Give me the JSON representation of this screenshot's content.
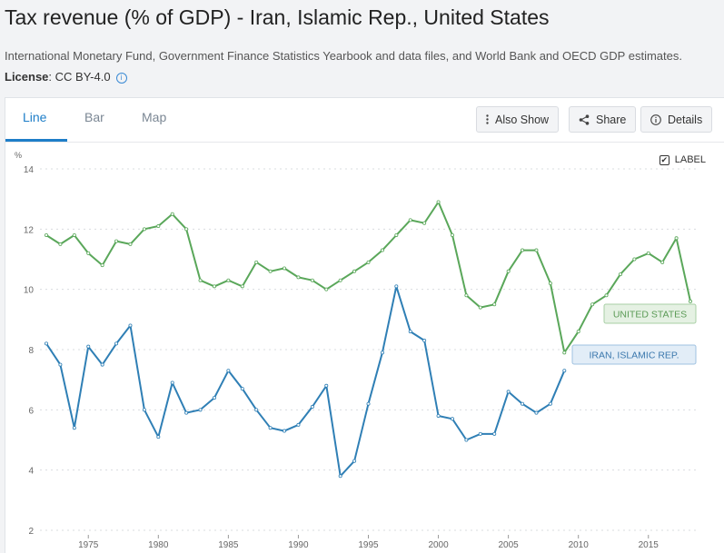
{
  "header": {
    "title": "Tax revenue (% of GDP) - Iran, Islamic Rep., United States",
    "source": "International Monetary Fund, Government Finance Statistics Yearbook and data files, and World Bank and OECD GDP estimates.",
    "license_label": "License",
    "license_value": ": CC BY-4.0",
    "info_icon": "i"
  },
  "tabs": [
    {
      "label": "Line",
      "active": true
    },
    {
      "label": "Bar",
      "active": false
    },
    {
      "label": "Map",
      "active": false
    }
  ],
  "toolbar": {
    "also_show": "Also Show",
    "share": "Share",
    "details": "Details",
    "label_toggle": "LABEL",
    "label_checked": true
  },
  "colors": {
    "accent": "#1e7ec8",
    "us": "#5aa75a",
    "iran": "#2f7fb5"
  },
  "chart_data": {
    "type": "line",
    "ylabel": "%",
    "ylim": [
      2,
      14
    ],
    "yticks": [
      2,
      4,
      6,
      8,
      10,
      12,
      14
    ],
    "xlim": [
      1972,
      2018
    ],
    "xticks": [
      1975,
      1980,
      1985,
      1990,
      1995,
      2000,
      2005,
      2010,
      2015
    ],
    "grid": true,
    "series": [
      {
        "name": "UNITED STATES",
        "color": "#5aa75a",
        "label_bg": "#e5f1e3",
        "label_border": "#a8cfa5",
        "label_text": "#5a9a55",
        "x": [
          1972,
          1973,
          1974,
          1975,
          1976,
          1977,
          1978,
          1979,
          1980,
          1981,
          1982,
          1983,
          1984,
          1985,
          1986,
          1987,
          1988,
          1989,
          1990,
          1991,
          1992,
          1993,
          1994,
          1995,
          1996,
          1997,
          1998,
          1999,
          2000,
          2001,
          2002,
          2003,
          2004,
          2005,
          2006,
          2007,
          2008,
          2009,
          2010,
          2011,
          2012,
          2013,
          2014,
          2015,
          2016,
          2017,
          2018
        ],
        "values": [
          11.8,
          11.5,
          11.8,
          11.2,
          10.8,
          11.6,
          11.5,
          12.0,
          12.1,
          12.5,
          12.0,
          10.3,
          10.1,
          10.3,
          10.1,
          10.9,
          10.6,
          10.7,
          10.4,
          10.3,
          10.0,
          10.3,
          10.6,
          10.9,
          11.3,
          11.8,
          12.3,
          12.2,
          12.9,
          11.8,
          9.8,
          9.4,
          9.5,
          10.6,
          11.3,
          11.3,
          10.2,
          7.9,
          8.6,
          9.5,
          9.8,
          10.5,
          11.0,
          11.2,
          10.9,
          11.7,
          9.6
        ]
      },
      {
        "name": "IRAN, ISLAMIC REP.",
        "color": "#2f7fb5",
        "label_bg": "#e2edf7",
        "label_border": "#9fc1e0",
        "label_text": "#3b78ad",
        "x": [
          1972,
          1973,
          1974,
          1975,
          1976,
          1977,
          1978,
          1979,
          1980,
          1981,
          1982,
          1983,
          1984,
          1985,
          1986,
          1987,
          1988,
          1989,
          1990,
          1991,
          1992,
          1993,
          1994,
          1995,
          1996,
          1997,
          1998,
          1999,
          2000,
          2001,
          2002,
          2003,
          2004,
          2005,
          2006,
          2007,
          2008,
          2009
        ],
        "values": [
          8.2,
          7.5,
          5.4,
          8.1,
          7.5,
          8.2,
          8.8,
          6.0,
          5.1,
          6.9,
          5.9,
          6.0,
          6.4,
          7.3,
          6.7,
          6.0,
          5.4,
          5.3,
          5.5,
          6.1,
          6.8,
          3.8,
          4.3,
          6.2,
          7.9,
          10.1,
          8.6,
          8.3,
          5.8,
          5.7,
          5.0,
          5.2,
          5.2,
          6.6,
          6.2,
          5.9,
          6.2,
          7.3
        ]
      }
    ]
  }
}
